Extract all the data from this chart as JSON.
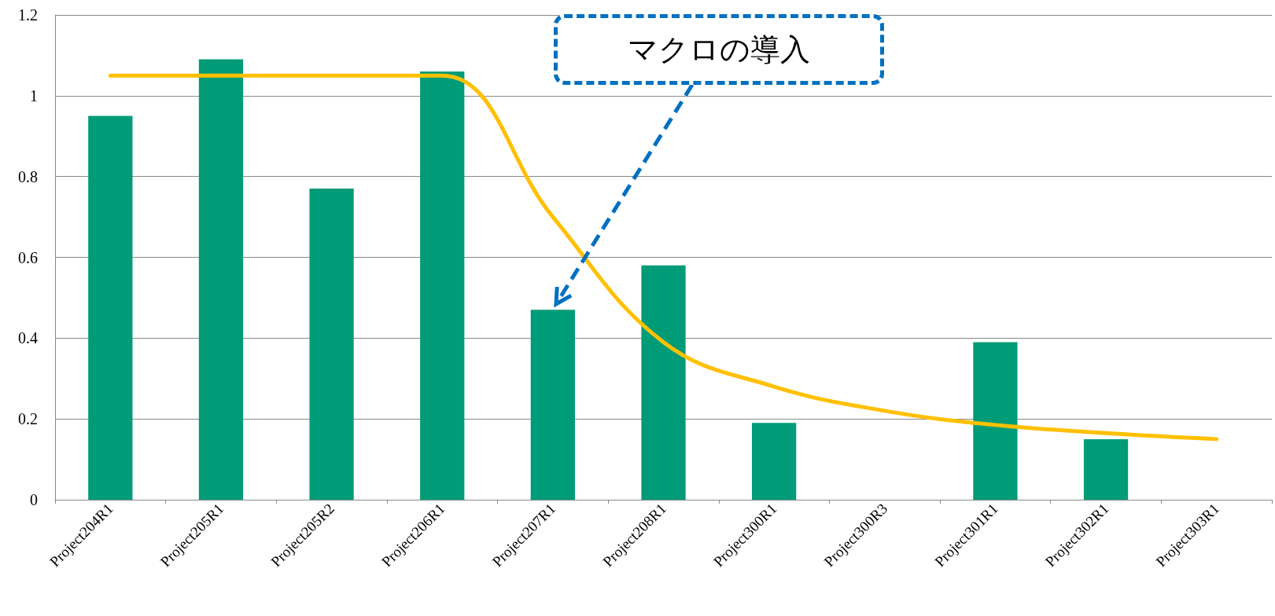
{
  "chart_data": {
    "type": "bar",
    "categories": [
      "Project204R1",
      "Project205R1",
      "Project205R2",
      "Project206R1",
      "Project207R1",
      "Project208R1",
      "Project300R1",
      "Project300R3",
      "Project301R1",
      "Project302R1",
      "Project303R1"
    ],
    "series": [
      {
        "color": "#009b77",
        "values": [
          0.95,
          1.09,
          0.77,
          1.06,
          0.47,
          0.58,
          0.19,
          null,
          0.39,
          0.15,
          null
        ]
      },
      {
        "type": "line",
        "color": "#ffc000",
        "values": [
          1.05,
          1.05,
          1.05,
          1.05,
          0.7,
          0.39,
          0.28,
          0.22,
          0.185,
          0.165,
          0.15
        ]
      }
    ],
    "ylim": [
      0,
      1.2
    ],
    "yticks": [
      0,
      0.2,
      0.4,
      0.6,
      0.8,
      1,
      1.2
    ],
    "grid": "y",
    "marker": "none",
    "line_style": "solid",
    "annotations": [
      "マクロの導入"
    ]
  }
}
